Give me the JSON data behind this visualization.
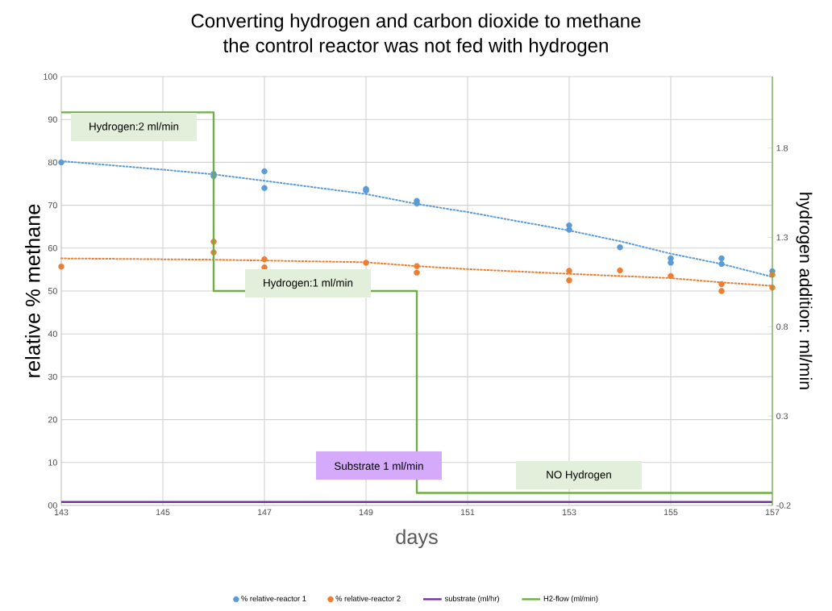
{
  "chart_data": {
    "type": "scatter",
    "title": "Converting hydrogen and carbon dioxide to methane",
    "subtitle": "the control reactor was not fed with hydrogen",
    "xlabel": "days",
    "ylabel": "relative % methane",
    "y2label": "hydrogen addition: ml/min",
    "xlim": [
      143,
      157
    ],
    "xticks": [
      143,
      145,
      147,
      149,
      151,
      153,
      155,
      157
    ],
    "ylim": [
      0,
      100
    ],
    "yticks": [
      {
        "value": 0,
        "label": "00"
      },
      10,
      20,
      30,
      40,
      50,
      60,
      70,
      80,
      90,
      100
    ],
    "y2lim": [
      -0.2,
      2.2
    ],
    "y2ticks": [
      -0.2,
      0.3,
      0.8,
      1.3,
      1.8
    ],
    "grid": true,
    "legend": "bottom",
    "series": [
      {
        "name": "% relative-reactor 1",
        "marker": "circle",
        "color": "#5b9bd5",
        "x": [
          143,
          146,
          146,
          147,
          147,
          149,
          149,
          150,
          150,
          153,
          153,
          154,
          155,
          155,
          156,
          156,
          157
        ],
        "values": [
          80,
          77.3,
          76.8,
          77.9,
          74.0,
          73.8,
          73.4,
          71.0,
          70.4,
          65.3,
          64.3,
          60.2,
          57.6,
          56.6,
          57.6,
          56.3,
          54.6
        ]
      },
      {
        "name": "% relative-reactor 2",
        "marker": "circle",
        "color": "#ed7d31",
        "x": [
          143,
          146,
          146,
          147,
          147,
          149,
          150,
          150,
          153,
          153,
          154,
          155,
          156,
          156,
          157,
          157
        ],
        "values": [
          55.7,
          61.5,
          59.0,
          57.4,
          55.5,
          56.6,
          55.8,
          54.3,
          54.7,
          52.5,
          54.8,
          53.5,
          51.6,
          50.0,
          53.8,
          50.8
        ]
      },
      {
        "type": "line",
        "line_style": "dotted",
        "marker": "none",
        "color": "#5b9bd5",
        "x": [
          143,
          145,
          146,
          147,
          149,
          150,
          151,
          153,
          154,
          155,
          156,
          157
        ],
        "values": [
          80.3,
          78.3,
          77.2,
          75.7,
          72.6,
          70.3,
          68.4,
          64.1,
          61.6,
          58.7,
          56.3,
          53.3
        ]
      },
      {
        "type": "line",
        "line_style": "dotted",
        "marker": "none",
        "color": "#ed7d31",
        "x": [
          143,
          146,
          149,
          150,
          151,
          153,
          155,
          156,
          157
        ],
        "values": [
          57.6,
          57.3,
          56.7,
          55.8,
          55.1,
          54.0,
          53.0,
          52.0,
          51.2
        ]
      },
      {
        "name": "substrate (ml/hr)",
        "type": "line",
        "line_style": "solid",
        "marker": "none",
        "color": "#7030a0",
        "x": [
          143,
          157
        ],
        "values": [
          0.8,
          0.8
        ]
      },
      {
        "name": "H2-flow (ml/min)",
        "type": "step",
        "axis": "y2",
        "line_style": "solid",
        "marker": "none",
        "color": "#70ad47",
        "x": [
          143,
          146,
          150,
          157
        ],
        "values": [
          2.0,
          1.0,
          -0.13,
          -0.13
        ]
      }
    ],
    "annotations": [
      "Hydrogen:2 ml/min",
      "Hydrogen:1 ml/min",
      "Substrate 1 ml/min",
      "NO Hydrogen"
    ]
  }
}
